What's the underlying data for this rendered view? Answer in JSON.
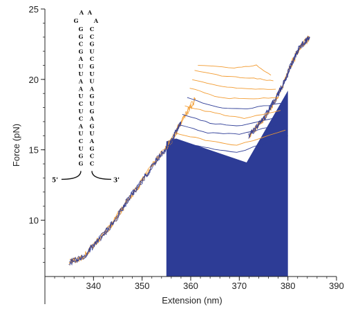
{
  "chart_data": {
    "type": "line",
    "title": "",
    "xlabel": "Extension (nm)",
    "ylabel": "Force (pN)",
    "xlim": [
      330,
      390
    ],
    "ylim": [
      6,
      25
    ],
    "x_ticks": [
      340,
      350,
      360,
      370,
      380,
      390
    ],
    "y_ticks": [
      10,
      15,
      20,
      25
    ],
    "colors": {
      "series_a": "#2d3c96",
      "series_b": "#f29a2e",
      "fill": "#2d3c96"
    },
    "series": [
      {
        "color": "series_b",
        "description_of_shape": "stretch",
        "points": [
          [
            335,
            7.0
          ],
          [
            338,
            7.4
          ],
          [
            341,
            8.6
          ],
          [
            344,
            9.8
          ],
          [
            347,
            11.4
          ],
          [
            350,
            12.8
          ],
          [
            353,
            14.3
          ],
          [
            356,
            15.6
          ],
          [
            358.5,
            17.3
          ],
          [
            361,
            18.6
          ]
        ]
      },
      {
        "color": "series_a",
        "points": [
          [
            335,
            7.0
          ],
          [
            338,
            7.4
          ],
          [
            341,
            8.6
          ],
          [
            344,
            9.8
          ],
          [
            347,
            11.4
          ],
          [
            350,
            12.8
          ],
          [
            353,
            14.3
          ],
          [
            356,
            15.6
          ],
          [
            358,
            17.0
          ]
        ]
      },
      {
        "color": "series_b",
        "points": [
          [
            372,
            16.0
          ],
          [
            375,
            17.2
          ],
          [
            377.5,
            18.6
          ],
          [
            379.5,
            20.0
          ],
          [
            381,
            21.3
          ],
          [
            382.5,
            22.3
          ],
          [
            384.5,
            23.0
          ]
        ]
      },
      {
        "color": "series_a",
        "points": [
          [
            372,
            16.0
          ],
          [
            375,
            17.2
          ],
          [
            377.5,
            18.6
          ],
          [
            379.5,
            20.0
          ],
          [
            381,
            21.3
          ],
          [
            382.5,
            22.3
          ],
          [
            384.5,
            23.0
          ]
        ]
      }
    ],
    "transitions": [
      {
        "color": "series_b",
        "points": [
          [
            361.5,
            21.0
          ],
          [
            369.0,
            20.8
          ],
          [
            373.5,
            21.0
          ],
          [
            376.5,
            20.3
          ]
        ]
      },
      {
        "color": "series_b",
        "points": [
          [
            360.8,
            20.6
          ],
          [
            367.5,
            20.2
          ],
          [
            373.0,
            20.1
          ],
          [
            377.0,
            19.9
          ]
        ]
      },
      {
        "color": "series_b",
        "points": [
          [
            360.3,
            20.0
          ],
          [
            366.5,
            19.5
          ],
          [
            372.5,
            19.3
          ],
          [
            377.5,
            19.3
          ]
        ]
      },
      {
        "color": "series_b",
        "points": [
          [
            359.8,
            19.4
          ],
          [
            366.0,
            18.7
          ],
          [
            372.0,
            18.6
          ],
          [
            378.0,
            18.7
          ]
        ]
      },
      {
        "color": "series_a",
        "points": [
          [
            359.3,
            18.7
          ],
          [
            365.5,
            18.0
          ],
          [
            371.5,
            17.9
          ],
          [
            378.5,
            18.3
          ]
        ]
      },
      {
        "color": "series_b",
        "points": [
          [
            358.8,
            18.1
          ],
          [
            365.0,
            17.6
          ],
          [
            371.0,
            17.2
          ],
          [
            378.5,
            17.8
          ]
        ]
      },
      {
        "color": "series_a",
        "points": [
          [
            358.3,
            17.5
          ],
          [
            364.0,
            16.9
          ],
          [
            370.5,
            16.7
          ],
          [
            379.0,
            17.4
          ]
        ]
      },
      {
        "color": "series_a",
        "points": [
          [
            357.5,
            16.8
          ],
          [
            363.5,
            16.2
          ],
          [
            370.0,
            16.1
          ],
          [
            379.5,
            16.9
          ]
        ]
      },
      {
        "color": "series_b",
        "points": [
          [
            356.8,
            16.2
          ],
          [
            363.0,
            15.7
          ],
          [
            369.5,
            15.3
          ],
          [
            379.5,
            16.4
          ]
        ]
      },
      {
        "color": "series_a",
        "points": [
          [
            356.2,
            15.7
          ],
          [
            362.5,
            15.2
          ],
          [
            369.5,
            14.8
          ],
          [
            380.0,
            16.0
          ]
        ]
      }
    ],
    "filled_region": {
      "color": "fill",
      "boundary": [
        [
          355,
          6
        ],
        [
          355,
          15.6
        ],
        [
          357,
          15.8
        ],
        [
          371.5,
          14.1
        ],
        [
          380,
          19.2
        ],
        [
          380,
          6
        ]
      ]
    }
  },
  "inset": {
    "strand_5prime": [
      "G",
      "G",
      "C",
      "G",
      "A",
      "U",
      "U",
      "A",
      "A",
      "U",
      "C",
      "U",
      "C",
      "A",
      "U",
      "C",
      "U",
      "G",
      "G"
    ],
    "strand_3prime": [
      "C",
      "C",
      "G",
      "U",
      "C",
      "G",
      "U",
      "U",
      "A",
      "G",
      "U",
      "G",
      "A",
      "G",
      "U",
      "A",
      "G",
      "C",
      "C"
    ],
    "loop": [
      "G",
      "A",
      "A",
      "A"
    ],
    "label_5": "5'",
    "label_3": "3'"
  }
}
